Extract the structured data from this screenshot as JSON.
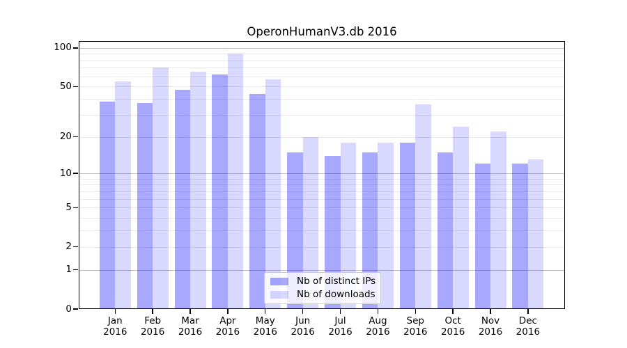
{
  "figure": {
    "background": "#ffffff"
  },
  "chart_data": {
    "type": "bar",
    "title": "OperonHumanV3.db 2016",
    "categories": [
      "Jan",
      "Feb",
      "Mar",
      "Apr",
      "May",
      "Jun",
      "Jul",
      "Aug",
      "Sep",
      "Oct",
      "Nov",
      "Dec"
    ],
    "x_tick_second_line": "2016",
    "xlabel": "",
    "ylabel": "",
    "yscale": "log1p",
    "ylim": [
      0,
      113
    ],
    "yticks": [
      0,
      1,
      2,
      5,
      10,
      20,
      50,
      100
    ],
    "gridlines": {
      "major": [
        1,
        10,
        100
      ],
      "minor": [
        2,
        3,
        4,
        5,
        6,
        7,
        8,
        9,
        20,
        30,
        40,
        50,
        60,
        70,
        80,
        90
      ]
    },
    "series": [
      {
        "name": "Nb of distinct IPs",
        "color": "#0000ff",
        "alpha": 0.34,
        "values": [
          38,
          37,
          47,
          62,
          44,
          15,
          14,
          15,
          18,
          15,
          12,
          12
        ]
      },
      {
        "name": "Nb of downloads",
        "color": "#0000ff",
        "alpha": 0.15,
        "values": [
          55,
          70,
          65,
          90,
          57,
          20,
          18,
          18,
          36,
          24,
          22,
          13
        ]
      }
    ],
    "legend": {
      "position": "lower center",
      "entries": [
        "Nb of distinct IPs",
        "Nb of downloads"
      ]
    },
    "colors": {
      "spine": "#000000",
      "grid_major": "#bdbdbd",
      "grid_minor": "#e8e8e8",
      "text": "#000000",
      "legend_background": "rgba(255,255,255,0.8)",
      "legend_border": "#cccccc"
    }
  }
}
